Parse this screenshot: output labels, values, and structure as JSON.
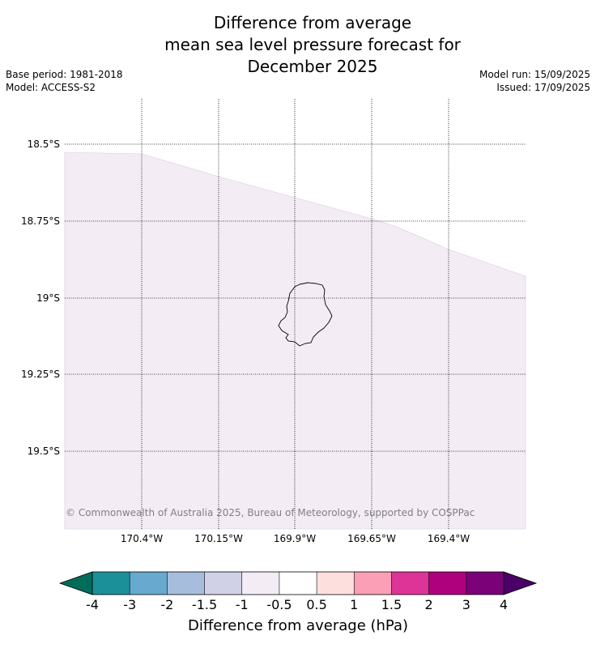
{
  "title": {
    "line1": "Difference from average",
    "line2": "mean sea level pressure forecast for",
    "line3": "December 2025"
  },
  "meta": {
    "base_period": "Base period: 1981-2018",
    "model": "Model: ACCESS-S2",
    "model_run": "Model run: 15/09/2025",
    "issued": "Issued: 17/09/2025"
  },
  "map": {
    "lat_labels": [
      "18.5°S",
      "18.75°S",
      "19°S",
      "19.25°S",
      "19.5°S"
    ],
    "lon_labels": [
      "170.4°W",
      "170.15°W",
      "169.9°W",
      "169.65°W",
      "169.4°W"
    ],
    "copyright": "© Commonwealth of Australia 2025, Bureau of Meteorology, supported by COSPPac",
    "field_color": "#f3ecf5",
    "field_value_class": "-1 to -0.5"
  },
  "colorbar": {
    "label": "Difference from average (hPa)",
    "ticks": [
      "-4",
      "-3",
      "-2",
      "-1.5",
      "-1",
      "-0.5",
      "0.5",
      "1",
      "1.5",
      "2",
      "3",
      "4"
    ],
    "under_color": "#006d5b",
    "over_color": "#4b0068",
    "colors": [
      "#1c9099",
      "#67a9cf",
      "#a6bddb",
      "#d0d1e6",
      "#f3ecf5",
      "#ffffff",
      "#fde0dd",
      "#fa9fb5",
      "#dd3497",
      "#ae017e",
      "#7a0177"
    ]
  }
}
